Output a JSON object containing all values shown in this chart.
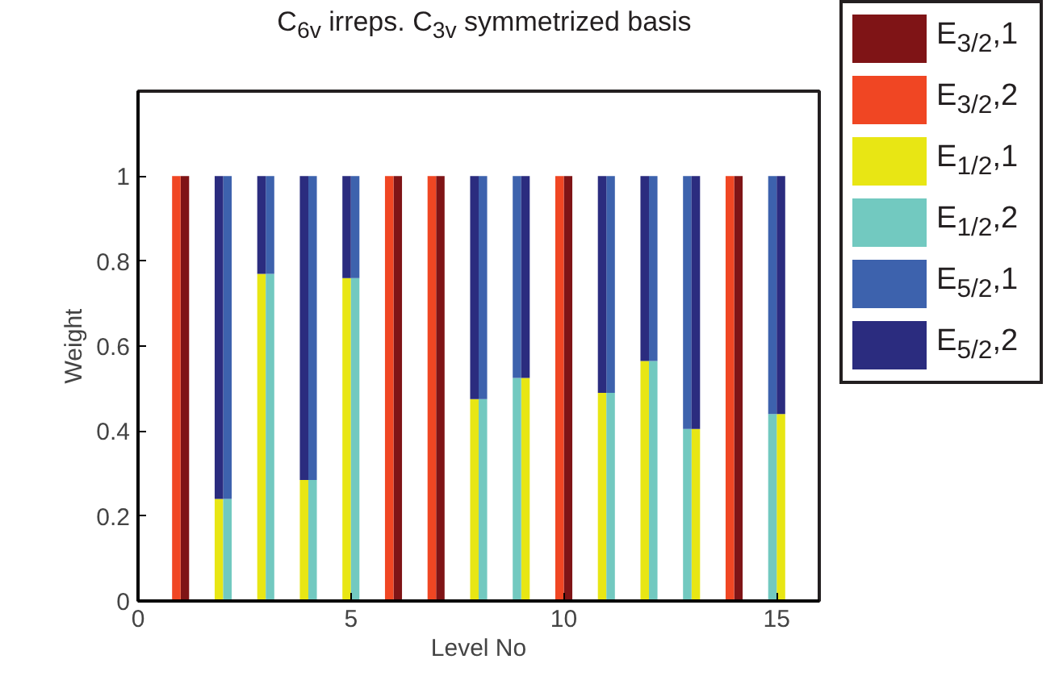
{
  "chart_data": {
    "type": "bar",
    "stacked": true,
    "title": "C$_{6v}$ irreps. C$_{3v}$ symmetrized basis",
    "xlabel": "Level No",
    "ylabel": "Weight",
    "x": [
      0.9,
      1.1,
      1.9,
      2.1,
      2.9,
      3.1,
      3.9,
      4.1,
      4.9,
      5.1,
      5.9,
      6.1,
      6.9,
      7.1,
      7.9,
      8.1,
      8.9,
      9.1,
      9.9,
      10.1,
      10.9,
      11.1,
      11.9,
      12.1,
      12.9,
      13.1,
      13.9,
      14.1,
      14.9,
      15.1
    ],
    "xlim": [
      0,
      16
    ],
    "xticks": [
      0,
      5,
      10,
      15
    ],
    "ylim": [
      0,
      1.2
    ],
    "yticks": [
      0,
      0.2,
      0.4,
      0.6,
      0.8,
      1
    ],
    "grid": false,
    "legend": "right",
    "series": [
      {
        "name": "E$_{3/2}$,1",
        "color": "#7f1416",
        "values": [
          0,
          1,
          0,
          0,
          0,
          0,
          0,
          0,
          0,
          0,
          0,
          1,
          0,
          1,
          0,
          0,
          0,
          0,
          0,
          1,
          0,
          0,
          0,
          0,
          0,
          0,
          0,
          1,
          0,
          0
        ]
      },
      {
        "name": "E$_{3/2}$,2",
        "color": "#f04623",
        "values": [
          1,
          0,
          0,
          0,
          0,
          0,
          0,
          0,
          0,
          0,
          1,
          0,
          1,
          0,
          0,
          0,
          0,
          0,
          1,
          0,
          0,
          0,
          0,
          0,
          0,
          0,
          1,
          0,
          0,
          0
        ]
      },
      {
        "name": "E$_{1/2}$,1",
        "color": "#e8e614",
        "values": [
          0,
          0,
          0.24,
          0,
          0.77,
          0,
          0.285,
          0,
          0.76,
          0,
          0,
          0,
          0,
          0,
          0.475,
          0,
          0,
          0.525,
          0,
          0,
          0.49,
          0,
          0.565,
          0,
          0,
          0.405,
          0,
          0,
          0,
          0.44
        ]
      },
      {
        "name": "E$_{1/2}$,2",
        "color": "#72c9c0",
        "values": [
          0,
          0,
          0,
          0.24,
          0,
          0.77,
          0,
          0.285,
          0,
          0.76,
          0,
          0,
          0,
          0,
          0,
          0.475,
          0.525,
          0,
          0,
          0,
          0,
          0.49,
          0,
          0.565,
          0.405,
          0,
          0,
          0,
          0.44,
          0
        ]
      },
      {
        "name": "E$_{5/2}$,1",
        "color": "#3d62ad",
        "values": [
          0,
          0,
          0,
          0.76,
          0,
          0.23,
          0,
          0.715,
          0,
          0.24,
          0,
          0,
          0,
          0,
          0,
          0.525,
          0.475,
          0,
          0,
          0,
          0,
          0.51,
          0,
          0.435,
          0.595,
          0,
          0,
          0,
          0.56,
          0
        ]
      },
      {
        "name": "E$_{5/2}$,2",
        "color": "#2b2c7f",
        "values": [
          0,
          0,
          0.76,
          0,
          0.23,
          0,
          0.715,
          0,
          0.24,
          0,
          0,
          0,
          0,
          0,
          0.525,
          0,
          0,
          0.475,
          0,
          0,
          0.51,
          0,
          0.435,
          0,
          0,
          0.595,
          0,
          0,
          0,
          0.56
        ]
      }
    ]
  }
}
